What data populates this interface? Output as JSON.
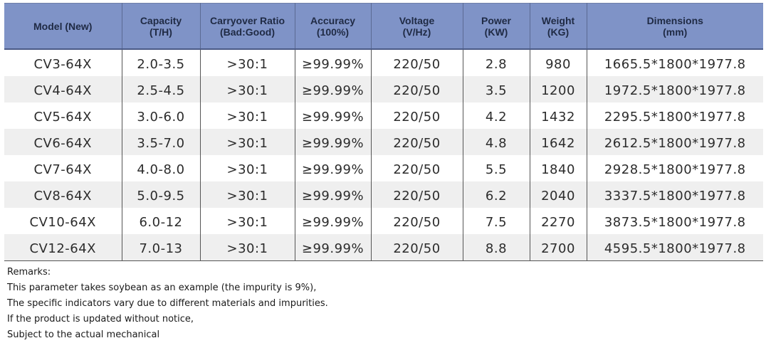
{
  "table": {
    "headers": [
      {
        "line1": "Model (New)",
        "line2": ""
      },
      {
        "line1": "Capacity",
        "line2": "(T/H)"
      },
      {
        "line1": "Carryover Ratio",
        "line2": "(Bad:Good)"
      },
      {
        "line1": "Accuracy",
        "line2": "(100%)"
      },
      {
        "line1": "Voltage",
        "line2": "(V/Hz)"
      },
      {
        "line1": "Power",
        "line2": "(KW)"
      },
      {
        "line1": "Weight",
        "line2": "(KG)"
      },
      {
        "line1": "Dimensions",
        "line2": "(mm)"
      }
    ],
    "rows": [
      [
        "CV3-64X",
        "2.0-3.5",
        ">30:1",
        "≥99.99%",
        "220/50",
        "2.8",
        "980",
        "1665.5*1800*1977.8"
      ],
      [
        "CV4-64X",
        "2.5-4.5",
        ">30:1",
        "≥99.99%",
        "220/50",
        "3.5",
        "1200",
        "1972.5*1800*1977.8"
      ],
      [
        "CV5-64X",
        "3.0-6.0",
        ">30:1",
        "≥99.99%",
        "220/50",
        "4.2",
        "1432",
        "2295.5*1800*1977.8"
      ],
      [
        "CV6-64X",
        "3.5-7.0",
        ">30:1",
        "≥99.99%",
        "220/50",
        "4.8",
        "1642",
        "2612.5*1800*1977.8"
      ],
      [
        "CV7-64X",
        "4.0-8.0",
        ">30:1",
        "≥99.99%",
        "220/50",
        "5.5",
        "1840",
        "2928.5*1800*1977.8"
      ],
      [
        "CV8-64X",
        "5.0-9.5",
        ">30:1",
        "≥99.99%",
        "220/50",
        "6.2",
        "2040",
        "3337.5*1800*1977.8"
      ],
      [
        "CV10-64X",
        "6.0-12",
        ">30:1",
        "≥99.99%",
        "220/50",
        "7.5",
        "2270",
        "3873.5*1800*1977.8"
      ],
      [
        "CV12-64X",
        "7.0-13",
        ">30:1",
        "≥99.99%",
        "220/50",
        "8.8",
        "2700",
        "4595.5*1800*1977.8"
      ]
    ]
  },
  "remarks": [
    "Remarks:",
    "This parameter takes soybean as an example (the impurity is 9%),",
    "The specific indicators vary due to different materials and impurities.",
    "If the product is updated without notice,",
    "Subject to the actual mechanical"
  ],
  "colors": {
    "header_bg": "#7f93c7",
    "row_alt_bg": "#efefef"
  }
}
